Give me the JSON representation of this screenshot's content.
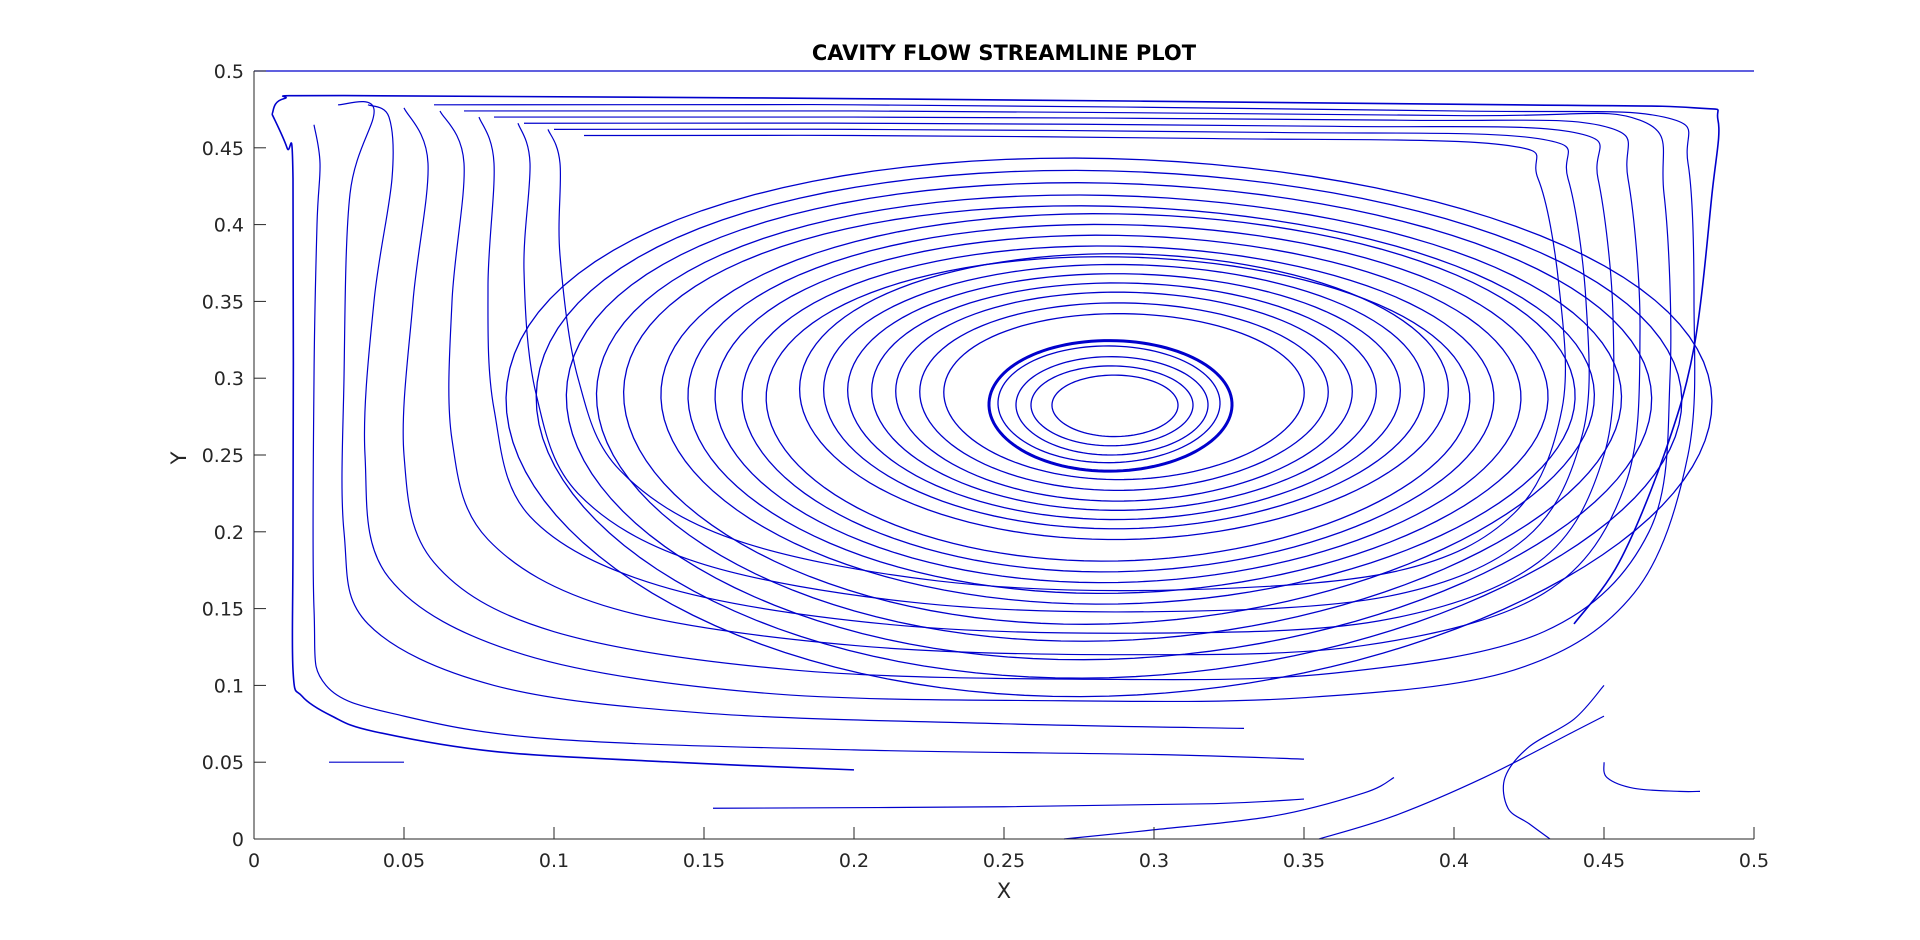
{
  "chart_data": {
    "type": "line",
    "subtype": "streamline",
    "title": "CAVITY FLOW STREAMLINE PLOT",
    "xlabel": "X",
    "ylabel": "Y",
    "xlim": [
      0,
      0.5
    ],
    "ylim": [
      0,
      0.5
    ],
    "x_ticks": [
      0,
      0.05,
      0.1,
      0.15,
      0.2,
      0.25,
      0.3,
      0.35,
      0.4,
      0.45,
      0.5
    ],
    "x_tick_labels": [
      "0",
      "0.05",
      "0.1",
      "0.15",
      "0.2",
      "0.25",
      "0.3",
      "0.35",
      "0.4",
      "0.45",
      "0.5"
    ],
    "y_ticks": [
      0,
      0.05,
      0.1,
      0.15,
      0.2,
      0.25,
      0.3,
      0.35,
      0.4,
      0.45,
      0.5
    ],
    "y_tick_labels": [
      "0",
      "0.05",
      "0.1",
      "0.15",
      "0.2",
      "0.25",
      "0.3",
      "0.35",
      "0.4",
      "0.45",
      "0.5"
    ],
    "grid": false,
    "line_color": "#0000cc",
    "vortex_center": [
      0.285,
      0.282
    ],
    "closed_streamlines": [
      {
        "cx": 0.2855,
        "cy": 0.282,
        "rx": 0.0405,
        "ry": 0.0425,
        "tilt": 0.02
      },
      {
        "cx": 0.285,
        "cy": 0.283,
        "rx": 0.037,
        "ry": 0.038,
        "tilt": 0.02
      },
      {
        "cx": 0.286,
        "cy": 0.282,
        "rx": 0.032,
        "ry": 0.032,
        "tilt": 0.02
      },
      {
        "cx": 0.286,
        "cy": 0.282,
        "rx": 0.027,
        "ry": 0.026,
        "tilt": 0.02
      },
      {
        "cx": 0.287,
        "cy": 0.282,
        "rx": 0.021,
        "ry": 0.02,
        "tilt": 0.02
      },
      {
        "cx": 0.29,
        "cy": 0.288,
        "rx": 0.108,
        "ry": 0.093,
        "tilt": 0.05
      },
      {
        "cx": 0.29,
        "cy": 0.288,
        "rx": 0.1,
        "ry": 0.086,
        "tilt": 0.05
      },
      {
        "cx": 0.29,
        "cy": 0.288,
        "rx": 0.092,
        "ry": 0.08,
        "tilt": 0.05
      },
      {
        "cx": 0.29,
        "cy": 0.288,
        "rx": 0.084,
        "ry": 0.074,
        "tilt": 0.05
      },
      {
        "cx": 0.29,
        "cy": 0.288,
        "rx": 0.076,
        "ry": 0.068,
        "tilt": 0.05
      },
      {
        "cx": 0.29,
        "cy": 0.288,
        "rx": 0.068,
        "ry": 0.061,
        "tilt": 0.05
      },
      {
        "cx": 0.29,
        "cy": 0.288,
        "rx": 0.06,
        "ry": 0.054,
        "tilt": 0.05
      },
      {
        "cx": 0.288,
        "cy": 0.28,
        "rx": 0.152,
        "ry": 0.127,
        "tilt": 0.07
      },
      {
        "cx": 0.288,
        "cy": 0.28,
        "rx": 0.143,
        "ry": 0.12,
        "tilt": 0.07
      },
      {
        "cx": 0.288,
        "cy": 0.28,
        "rx": 0.134,
        "ry": 0.113,
        "tilt": 0.07
      },
      {
        "cx": 0.288,
        "cy": 0.28,
        "rx": 0.125,
        "ry": 0.106,
        "tilt": 0.07
      },
      {
        "cx": 0.288,
        "cy": 0.28,
        "rx": 0.117,
        "ry": 0.099,
        "tilt": 0.07
      },
      {
        "cx": 0.285,
        "cy": 0.268,
        "rx": 0.2,
        "ry": 0.175,
        "tilt": 0.1
      },
      {
        "cx": 0.285,
        "cy": 0.27,
        "rx": 0.19,
        "ry": 0.165,
        "tilt": 0.1
      },
      {
        "cx": 0.285,
        "cy": 0.272,
        "rx": 0.18,
        "ry": 0.155,
        "tilt": 0.1
      },
      {
        "cx": 0.285,
        "cy": 0.274,
        "rx": 0.17,
        "ry": 0.145,
        "tilt": 0.1
      },
      {
        "cx": 0.285,
        "cy": 0.276,
        "rx": 0.161,
        "ry": 0.136,
        "tilt": 0.1
      }
    ],
    "open_streamlines": [
      [
        [
          0.006,
          0.472
        ],
        [
          0.01,
          0.482
        ],
        [
          0.03,
          0.484
        ],
        [
          0.2,
          0.482
        ],
        [
          0.42,
          0.478
        ],
        [
          0.48,
          0.476
        ],
        [
          0.488,
          0.468
        ],
        [
          0.486,
          0.42
        ],
        [
          0.48,
          0.32
        ],
        [
          0.47,
          0.25
        ],
        [
          0.455,
          0.18
        ],
        [
          0.44,
          0.14
        ]
      ],
      [
        [
          0.006,
          0.472
        ],
        [
          0.011,
          0.45
        ],
        [
          0.013,
          0.43
        ],
        [
          0.013,
          0.2
        ],
        [
          0.013,
          0.11
        ],
        [
          0.016,
          0.093
        ],
        [
          0.026,
          0.08
        ],
        [
          0.04,
          0.07
        ],
        [
          0.08,
          0.057
        ],
        [
          0.14,
          0.05
        ],
        [
          0.2,
          0.045
        ]
      ],
      [
        [
          0.02,
          0.465
        ],
        [
          0.022,
          0.44
        ],
        [
          0.021,
          0.4
        ],
        [
          0.02,
          0.3
        ],
        [
          0.02,
          0.15
        ],
        [
          0.024,
          0.1
        ],
        [
          0.05,
          0.08
        ],
        [
          0.1,
          0.065
        ],
        [
          0.2,
          0.058
        ],
        [
          0.3,
          0.055
        ],
        [
          0.35,
          0.052
        ]
      ],
      [
        [
          0.028,
          0.478
        ],
        [
          0.04,
          0.475
        ],
        [
          0.032,
          0.42
        ],
        [
          0.03,
          0.3
        ],
        [
          0.03,
          0.2
        ],
        [
          0.038,
          0.14
        ],
        [
          0.08,
          0.1
        ],
        [
          0.15,
          0.082
        ],
        [
          0.25,
          0.075
        ],
        [
          0.33,
          0.072
        ]
      ],
      [
        [
          0.038,
          0.478
        ],
        [
          0.045,
          0.47
        ],
        [
          0.046,
          0.43
        ],
        [
          0.04,
          0.35
        ],
        [
          0.037,
          0.25
        ],
        [
          0.045,
          0.17
        ],
        [
          0.09,
          0.12
        ],
        [
          0.17,
          0.095
        ],
        [
          0.27,
          0.09
        ],
        [
          0.35,
          0.092
        ],
        [
          0.42,
          0.11
        ],
        [
          0.46,
          0.16
        ],
        [
          0.478,
          0.25
        ],
        [
          0.48,
          0.35
        ],
        [
          0.478,
          0.44
        ],
        [
          0.47,
          0.47
        ],
        [
          0.4,
          0.474
        ],
        [
          0.2,
          0.478
        ],
        [
          0.06,
          0.478
        ]
      ],
      [
        [
          0.05,
          0.476
        ],
        [
          0.058,
          0.44
        ],
        [
          0.053,
          0.35
        ],
        [
          0.05,
          0.25
        ],
        [
          0.06,
          0.18
        ],
        [
          0.1,
          0.135
        ],
        [
          0.18,
          0.11
        ],
        [
          0.28,
          0.104
        ],
        [
          0.36,
          0.108
        ],
        [
          0.43,
          0.135
        ],
        [
          0.465,
          0.2
        ],
        [
          0.472,
          0.3
        ],
        [
          0.47,
          0.42
        ],
        [
          0.462,
          0.468
        ],
        [
          0.4,
          0.471
        ],
        [
          0.2,
          0.474
        ],
        [
          0.07,
          0.474
        ]
      ],
      [
        [
          0.062,
          0.474
        ],
        [
          0.07,
          0.44
        ],
        [
          0.066,
          0.35
        ],
        [
          0.066,
          0.26
        ],
        [
          0.078,
          0.195
        ],
        [
          0.12,
          0.15
        ],
        [
          0.2,
          0.126
        ],
        [
          0.29,
          0.12
        ],
        [
          0.37,
          0.126
        ],
        [
          0.43,
          0.16
        ],
        [
          0.457,
          0.23
        ],
        [
          0.462,
          0.33
        ],
        [
          0.458,
          0.43
        ],
        [
          0.45,
          0.464
        ],
        [
          0.38,
          0.468
        ],
        [
          0.2,
          0.47
        ],
        [
          0.08,
          0.47
        ]
      ],
      [
        [
          0.075,
          0.47
        ],
        [
          0.08,
          0.44
        ],
        [
          0.078,
          0.36
        ],
        [
          0.08,
          0.28
        ],
        [
          0.092,
          0.21
        ],
        [
          0.135,
          0.165
        ],
        [
          0.21,
          0.14
        ],
        [
          0.295,
          0.134
        ],
        [
          0.375,
          0.142
        ],
        [
          0.428,
          0.18
        ],
        [
          0.45,
          0.25
        ],
        [
          0.453,
          0.34
        ],
        [
          0.448,
          0.43
        ],
        [
          0.44,
          0.46
        ],
        [
          0.36,
          0.464
        ],
        [
          0.2,
          0.466
        ],
        [
          0.09,
          0.466
        ]
      ],
      [
        [
          0.088,
          0.466
        ],
        [
          0.092,
          0.44
        ],
        [
          0.09,
          0.37
        ],
        [
          0.094,
          0.29
        ],
        [
          0.108,
          0.225
        ],
        [
          0.148,
          0.18
        ],
        [
          0.22,
          0.154
        ],
        [
          0.3,
          0.148
        ],
        [
          0.378,
          0.158
        ],
        [
          0.424,
          0.196
        ],
        [
          0.443,
          0.265
        ],
        [
          0.444,
          0.35
        ],
        [
          0.438,
          0.43
        ],
        [
          0.428,
          0.456
        ],
        [
          0.34,
          0.46
        ],
        [
          0.2,
          0.462
        ],
        [
          0.1,
          0.462
        ]
      ],
      [
        [
          0.098,
          0.462
        ],
        [
          0.102,
          0.44
        ],
        [
          0.102,
          0.38
        ],
        [
          0.108,
          0.3
        ],
        [
          0.122,
          0.24
        ],
        [
          0.16,
          0.195
        ],
        [
          0.228,
          0.168
        ],
        [
          0.304,
          0.162
        ],
        [
          0.38,
          0.174
        ],
        [
          0.42,
          0.212
        ],
        [
          0.436,
          0.28
        ],
        [
          0.435,
          0.36
        ],
        [
          0.428,
          0.43
        ],
        [
          0.416,
          0.452
        ],
        [
          0.32,
          0.456
        ],
        [
          0.2,
          0.458
        ],
        [
          0.11,
          0.458
        ]
      ],
      [
        [
          0.025,
          0.05
        ],
        [
          0.05,
          0.05
        ]
      ],
      [
        [
          0.153,
          0.02
        ],
        [
          0.25,
          0.021
        ],
        [
          0.32,
          0.023
        ],
        [
          0.35,
          0.026
        ]
      ],
      [
        [
          0.27,
          0.0
        ],
        [
          0.3,
          0.006
        ],
        [
          0.34,
          0.015
        ],
        [
          0.37,
          0.03
        ],
        [
          0.38,
          0.04
        ]
      ],
      [
        [
          0.355,
          0.0
        ],
        [
          0.38,
          0.015
        ],
        [
          0.41,
          0.04
        ],
        [
          0.44,
          0.07
        ],
        [
          0.45,
          0.08
        ]
      ],
      [
        [
          0.432,
          0.0
        ],
        [
          0.425,
          0.01
        ],
        [
          0.418,
          0.02
        ],
        [
          0.417,
          0.04
        ],
        [
          0.425,
          0.06
        ],
        [
          0.44,
          0.078
        ],
        [
          0.45,
          0.1
        ]
      ],
      [
        [
          0.45,
          0.05
        ],
        [
          0.451,
          0.04
        ],
        [
          0.46,
          0.033
        ],
        [
          0.475,
          0.031
        ],
        [
          0.482,
          0.031
        ]
      ],
      [
        [
          0.0,
          0.5
        ],
        [
          0.5,
          0.5
        ]
      ]
    ]
  }
}
